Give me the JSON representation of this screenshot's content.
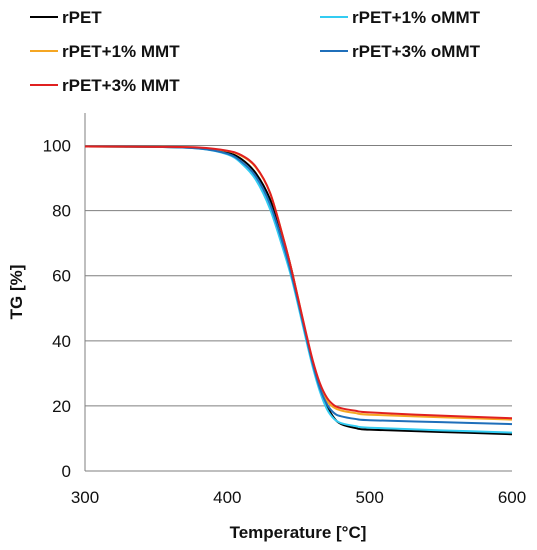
{
  "chart_data": {
    "type": "line",
    "xlabel": "Temperature [°C]",
    "ylabel": "TG [%]",
    "xlim": [
      300,
      600
    ],
    "ylim": [
      0,
      110
    ],
    "xticks": [
      300,
      400,
      500,
      600
    ],
    "yticks": [
      0,
      20,
      40,
      60,
      80,
      100
    ],
    "x_tick_labels": [
      "300",
      "400",
      "500",
      "600"
    ],
    "y_tick_labels": [
      "0",
      "20",
      "40",
      "60",
      "80",
      "100"
    ],
    "grid": "horizontal",
    "legend_position": "top",
    "series": [
      {
        "name": "rPET",
        "color": "#000000",
        "x": [
          300,
          350,
          380,
          400,
          410,
          420,
          430,
          440,
          445,
          450,
          455,
          460,
          465,
          470,
          475,
          480,
          490,
          500,
          550,
          600
        ],
        "y": [
          99.7,
          99.6,
          99.2,
          97.8,
          95.8,
          91.5,
          83.5,
          70,
          62,
          52,
          42,
          33,
          25.5,
          20,
          16.3,
          14.4,
          13.2,
          12.7,
          12,
          11.3
        ]
      },
      {
        "name": "rPET+1% oMMT",
        "color": "#33ccf2",
        "x": [
          300,
          350,
          380,
          400,
          410,
          420,
          430,
          440,
          445,
          450,
          455,
          460,
          465,
          470,
          475,
          480,
          490,
          500,
          550,
          600
        ],
        "y": [
          99.7,
          99.6,
          99.1,
          97.3,
          94.5,
          89.5,
          80.5,
          67,
          59.5,
          50.5,
          41,
          32,
          24.5,
          19,
          16,
          14.7,
          13.8,
          13.3,
          12.5,
          11.8
        ]
      },
      {
        "name": "rPET+1% MMT",
        "color": "#f5a623",
        "x": [
          300,
          350,
          380,
          400,
          410,
          420,
          430,
          440,
          445,
          450,
          455,
          460,
          465,
          470,
          475,
          480,
          490,
          500,
          550,
          600
        ],
        "y": [
          99.7,
          99.6,
          99.3,
          98.3,
          96.8,
          93.3,
          85.5,
          70.5,
          62,
          52.5,
          42.5,
          33.5,
          26.5,
          21.5,
          19.5,
          18.6,
          17.8,
          17.3,
          16.5,
          15.8
        ]
      },
      {
        "name": "rPET+3% oMMT",
        "color": "#1f6fba",
        "x": [
          300,
          350,
          380,
          400,
          410,
          420,
          430,
          440,
          445,
          450,
          455,
          460,
          465,
          470,
          475,
          480,
          490,
          500,
          550,
          600
        ],
        "y": [
          99.7,
          99.6,
          99.1,
          97.5,
          95,
          90.5,
          82,
          68.5,
          60.5,
          51.5,
          42,
          33,
          25.5,
          20.5,
          17.8,
          16.8,
          16,
          15.6,
          15,
          14.4
        ]
      },
      {
        "name": "rPET+3% MMT",
        "color": "#e02020",
        "x": [
          300,
          350,
          380,
          400,
          410,
          420,
          430,
          440,
          445,
          450,
          455,
          460,
          465,
          470,
          475,
          480,
          490,
          500,
          550,
          600
        ],
        "y": [
          99.7,
          99.6,
          99.4,
          98.4,
          97,
          93.5,
          85.5,
          70.5,
          62,
          52.5,
          43,
          34,
          27,
          22.5,
          20.2,
          19.3,
          18.5,
          18,
          17,
          16.2
        ]
      }
    ]
  }
}
